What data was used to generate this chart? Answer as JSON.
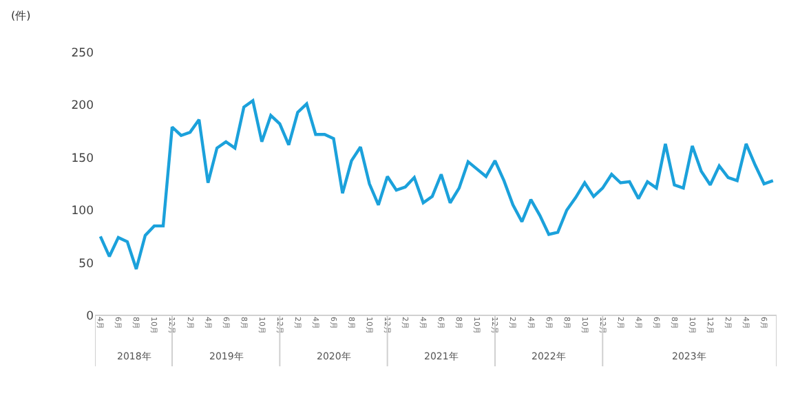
{
  "chart_data": {
    "type": "line",
    "ylabel": "(件)",
    "categories": [
      "4月",
      null,
      "6月",
      null,
      "8月",
      null,
      "10月",
      null,
      "12月",
      null,
      "2月",
      null,
      "4月",
      null,
      "6月",
      null,
      "8月",
      null,
      "10月",
      null,
      "12月",
      null,
      "2月",
      null,
      "4月",
      null,
      "6月",
      null,
      "8月",
      null,
      "10月",
      null,
      "12月",
      null,
      "2月",
      null,
      "4月",
      null,
      "6月",
      null,
      "8月",
      null,
      "10月",
      null,
      "12月",
      null,
      "2月",
      null,
      "4月",
      null,
      "6月",
      null,
      "8月",
      null,
      "10月",
      null,
      "12月",
      null,
      "2月",
      null,
      "4月",
      null,
      "6月",
      null,
      "8月",
      null,
      "10月",
      null,
      "12月",
      null,
      "2月",
      null,
      "4月",
      null,
      "6月",
      null
    ],
    "series": [
      {
        "color": "#1ba1db",
        "values": [
          75,
          56,
          74,
          70,
          44,
          76,
          85,
          85,
          179,
          171,
          174,
          186,
          126,
          159,
          165,
          159,
          198,
          204,
          165,
          190,
          182,
          162,
          193,
          201,
          172,
          172,
          168,
          116,
          147,
          160,
          125,
          105,
          132,
          119,
          122,
          131,
          107,
          113,
          134,
          107,
          121,
          146,
          139,
          132,
          147,
          128,
          105,
          89,
          110,
          95,
          77,
          79,
          100,
          112,
          126,
          113,
          121,
          134,
          126,
          127,
          111,
          127,
          121,
          163,
          124,
          121,
          161,
          137,
          124,
          142,
          131,
          128,
          163,
          143,
          125,
          128
        ]
      }
    ],
    "annotations": [
      "2018年",
      "2019年",
      "2020年",
      "2021年",
      "2022年",
      "2023年"
    ],
    "ylim": [
      0,
      250
    ],
    "yticks": [
      0,
      50,
      100,
      150,
      200,
      250
    ],
    "grid": false,
    "marker": "none",
    "line_style": "solid"
  }
}
